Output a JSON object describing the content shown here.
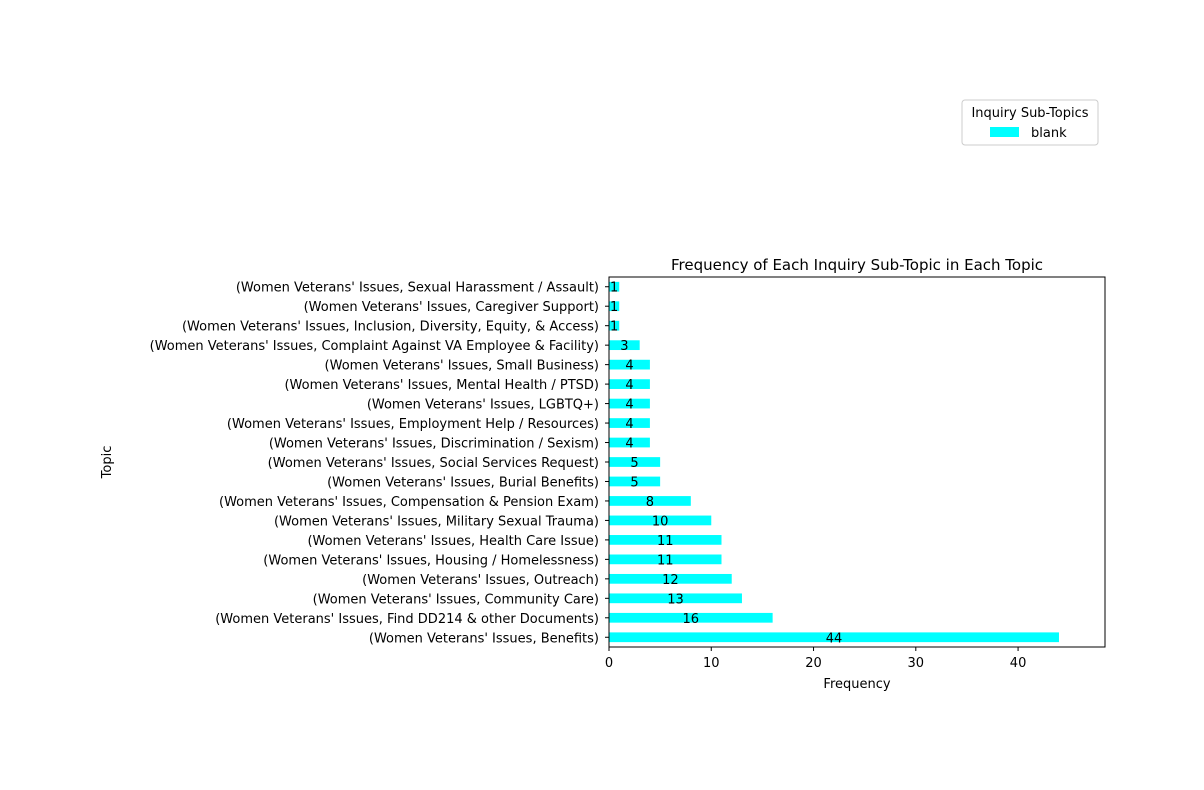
{
  "chart_data": {
    "type": "bar",
    "orientation": "horizontal",
    "title": "Frequency of Each Inquiry Sub-Topic in Each Topic",
    "xlabel": "Frequency",
    "ylabel": "Topic",
    "xlim": [
      0,
      48.5
    ],
    "xticks": [
      0,
      10,
      20,
      30,
      40
    ],
    "grid": false,
    "legend": {
      "title": "Inquiry Sub-Topics",
      "placement": "upper-right, outside plot area",
      "entries": [
        "blank"
      ]
    },
    "series_color": "#00ffff",
    "categories": [
      "(Women Veterans' Issues, Benefits)",
      "(Women Veterans' Issues, Find DD214  & other Documents)",
      "(Women Veterans' Issues, Community Care)",
      "(Women Veterans' Issues, Outreach)",
      "(Women Veterans' Issues, Housing / Homelessness)",
      "(Women Veterans' Issues, Health Care Issue)",
      "(Women Veterans' Issues, Military Sexual Trauma)",
      "(Women Veterans' Issues, Compensation & Pension Exam)",
      "(Women Veterans' Issues, Burial Benefits)",
      "(Women Veterans' Issues, Social Services Request)",
      "(Women Veterans' Issues, Discrimination / Sexism)",
      "(Women Veterans' Issues, Employment Help / Resources)",
      "(Women Veterans' Issues, LGBTQ+)",
      "(Women Veterans' Issues, Mental Health / PTSD)",
      "(Women Veterans' Issues, Small Business)",
      "(Women Veterans' Issues, Complaint Against VA Employee & Facility)",
      "(Women Veterans' Issues, Inclusion, Diversity, Equity, & Access)",
      "(Women Veterans' Issues, Caregiver Support)",
      "(Women Veterans' Issues, Sexual Harassment / Assault)"
    ],
    "series": [
      {
        "name": "blank",
        "values": [
          44,
          16,
          13,
          12,
          11,
          11,
          10,
          8,
          5,
          5,
          4,
          4,
          4,
          4,
          4,
          3,
          1,
          1,
          1
        ]
      }
    ]
  }
}
